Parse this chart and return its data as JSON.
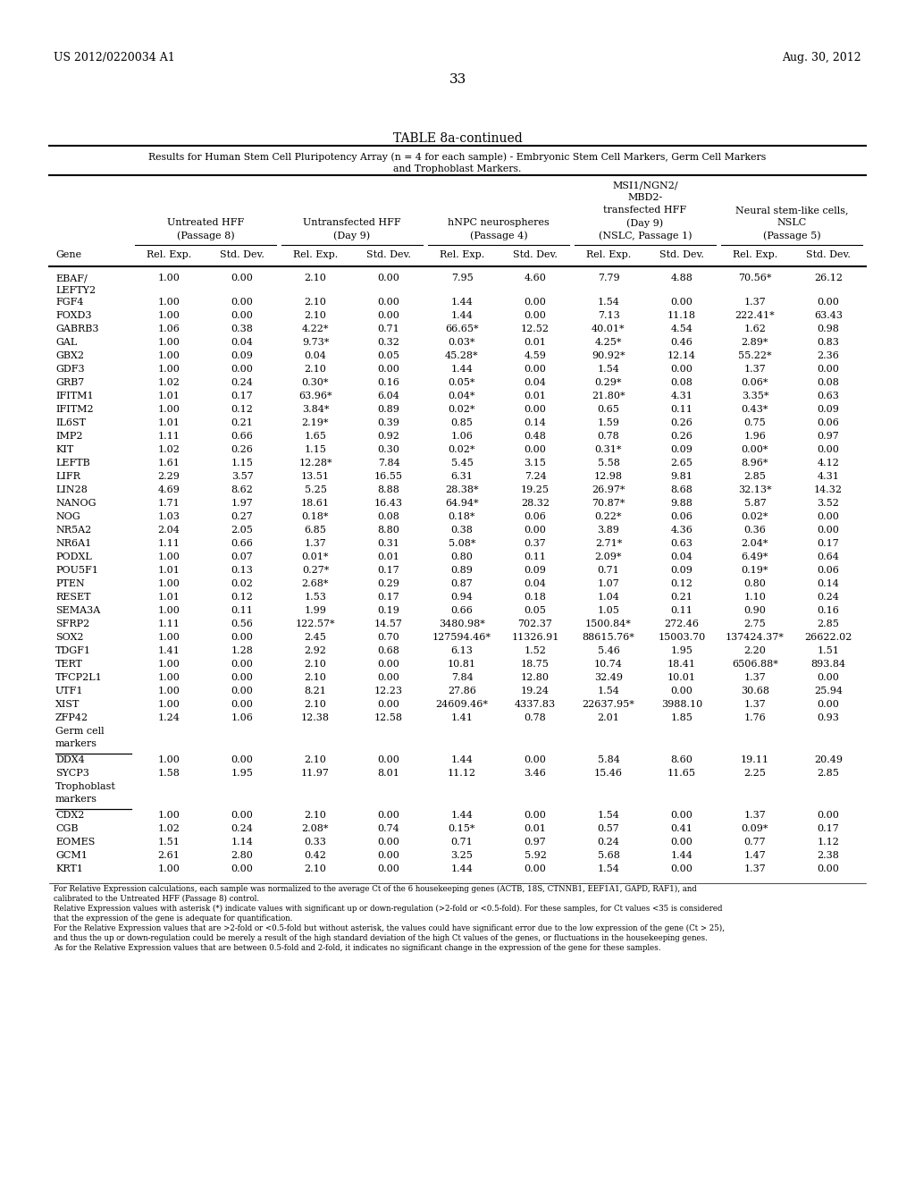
{
  "page_left": "US 2012/0220034 A1",
  "page_right": "Aug. 30, 2012",
  "page_number": "33",
  "table_title": "TABLE 8a-continued",
  "subtitle_line1": "Results for Human Stem Cell Pluripotency Array (n = 4 for each sample) - Embryonic Stem Cell Markers, Germ Cell Markers",
  "subtitle_line2": "and Trophoblast Markers.",
  "group_labels": [
    "Untreated HFF\n(Passage 8)",
    "Untransfected HFF\n(Day 9)",
    "hNPC neurospheres\n(Passage 4)",
    "MSI1/NGN2/\nMBD2-\ntransfected HFF\n(Day 9)\n(NSLC, Passage 1)",
    "Neural stem-like cells,\nNSLC\n(Passage 5)"
  ],
  "rows": [
    {
      "gene": "EBAF/\nLEFTY2",
      "values": [
        "1.00",
        "0.00",
        "2.10",
        "0.00",
        "7.95",
        "4.60",
        "7.79",
        "4.88",
        "70.56*",
        "26.12"
      ],
      "extra_height": true
    },
    {
      "gene": "FGF4",
      "values": [
        "1.00",
        "0.00",
        "2.10",
        "0.00",
        "1.44",
        "0.00",
        "1.54",
        "0.00",
        "1.37",
        "0.00"
      ]
    },
    {
      "gene": "FOXD3",
      "values": [
        "1.00",
        "0.00",
        "2.10",
        "0.00",
        "1.44",
        "0.00",
        "7.13",
        "11.18",
        "222.41*",
        "63.43"
      ]
    },
    {
      "gene": "GABRB3",
      "values": [
        "1.06",
        "0.38",
        "4.22*",
        "0.71",
        "66.65*",
        "12.52",
        "40.01*",
        "4.54",
        "1.62",
        "0.98"
      ]
    },
    {
      "gene": "GAL",
      "values": [
        "1.00",
        "0.04",
        "9.73*",
        "0.32",
        "0.03*",
        "0.01",
        "4.25*",
        "0.46",
        "2.89*",
        "0.83"
      ]
    },
    {
      "gene": "GBX2",
      "values": [
        "1.00",
        "0.09",
        "0.04",
        "0.05",
        "45.28*",
        "4.59",
        "90.92*",
        "12.14",
        "55.22*",
        "2.36"
      ]
    },
    {
      "gene": "GDF3",
      "values": [
        "1.00",
        "0.00",
        "2.10",
        "0.00",
        "1.44",
        "0.00",
        "1.54",
        "0.00",
        "1.37",
        "0.00"
      ]
    },
    {
      "gene": "GRB7",
      "values": [
        "1.02",
        "0.24",
        "0.30*",
        "0.16",
        "0.05*",
        "0.04",
        "0.29*",
        "0.08",
        "0.06*",
        "0.08"
      ]
    },
    {
      "gene": "IFITM1",
      "values": [
        "1.01",
        "0.17",
        "63.96*",
        "6.04",
        "0.04*",
        "0.01",
        "21.80*",
        "4.31",
        "3.35*",
        "0.63"
      ]
    },
    {
      "gene": "IFITM2",
      "values": [
        "1.00",
        "0.12",
        "3.84*",
        "0.89",
        "0.02*",
        "0.00",
        "0.65",
        "0.11",
        "0.43*",
        "0.09"
      ]
    },
    {
      "gene": "IL6ST",
      "values": [
        "1.01",
        "0.21",
        "2.19*",
        "0.39",
        "0.85",
        "0.14",
        "1.59",
        "0.26",
        "0.75",
        "0.06"
      ]
    },
    {
      "gene": "IMP2",
      "values": [
        "1.11",
        "0.66",
        "1.65",
        "0.92",
        "1.06",
        "0.48",
        "0.78",
        "0.26",
        "1.96",
        "0.97"
      ]
    },
    {
      "gene": "KIT",
      "values": [
        "1.02",
        "0.26",
        "1.15",
        "0.30",
        "0.02*",
        "0.00",
        "0.31*",
        "0.09",
        "0.00*",
        "0.00"
      ]
    },
    {
      "gene": "LEFTB",
      "values": [
        "1.61",
        "1.15",
        "12.28*",
        "7.84",
        "5.45",
        "3.15",
        "5.58",
        "2.65",
        "8.96*",
        "4.12"
      ]
    },
    {
      "gene": "LIFR",
      "values": [
        "2.29",
        "3.57",
        "13.51",
        "16.55",
        "6.31",
        "7.24",
        "12.98",
        "9.81",
        "2.85",
        "4.31"
      ]
    },
    {
      "gene": "LIN28",
      "values": [
        "4.69",
        "8.62",
        "5.25",
        "8.88",
        "28.38*",
        "19.25",
        "26.97*",
        "8.68",
        "32.13*",
        "14.32"
      ]
    },
    {
      "gene": "NANOG",
      "values": [
        "1.71",
        "1.97",
        "18.61",
        "16.43",
        "64.94*",
        "28.32",
        "70.87*",
        "9.88",
        "5.87",
        "3.52"
      ]
    },
    {
      "gene": "NOG",
      "values": [
        "1.03",
        "0.27",
        "0.18*",
        "0.08",
        "0.18*",
        "0.06",
        "0.22*",
        "0.06",
        "0.02*",
        "0.00"
      ]
    },
    {
      "gene": "NR5A2",
      "values": [
        "2.04",
        "2.05",
        "6.85",
        "8.80",
        "0.38",
        "0.00",
        "3.89",
        "4.36",
        "0.36",
        "0.00"
      ]
    },
    {
      "gene": "NR6A1",
      "values": [
        "1.11",
        "0.66",
        "1.37",
        "0.31",
        "5.08*",
        "0.37",
        "2.71*",
        "0.63",
        "2.04*",
        "0.17"
      ]
    },
    {
      "gene": "PODXL",
      "values": [
        "1.00",
        "0.07",
        "0.01*",
        "0.01",
        "0.80",
        "0.11",
        "2.09*",
        "0.04",
        "6.49*",
        "0.64"
      ]
    },
    {
      "gene": "POU5F1",
      "values": [
        "1.01",
        "0.13",
        "0.27*",
        "0.17",
        "0.89",
        "0.09",
        "0.71",
        "0.09",
        "0.19*",
        "0.06"
      ]
    },
    {
      "gene": "PTEN",
      "values": [
        "1.00",
        "0.02",
        "2.68*",
        "0.29",
        "0.87",
        "0.04",
        "1.07",
        "0.12",
        "0.80",
        "0.14"
      ]
    },
    {
      "gene": "RESET",
      "values": [
        "1.01",
        "0.12",
        "1.53",
        "0.17",
        "0.94",
        "0.18",
        "1.04",
        "0.21",
        "1.10",
        "0.24"
      ]
    },
    {
      "gene": "SEMA3A",
      "values": [
        "1.00",
        "0.11",
        "1.99",
        "0.19",
        "0.66",
        "0.05",
        "1.05",
        "0.11",
        "0.90",
        "0.16"
      ]
    },
    {
      "gene": "SFRP2",
      "values": [
        "1.11",
        "0.56",
        "122.57*",
        "14.57",
        "3480.98*",
        "702.37",
        "1500.84*",
        "272.46",
        "2.75",
        "2.85"
      ]
    },
    {
      "gene": "SOX2",
      "values": [
        "1.00",
        "0.00",
        "2.45",
        "0.70",
        "127594.46*",
        "11326.91",
        "88615.76*",
        "15003.70",
        "137424.37*",
        "26622.02"
      ]
    },
    {
      "gene": "TDGF1",
      "values": [
        "1.41",
        "1.28",
        "2.92",
        "0.68",
        "6.13",
        "1.52",
        "5.46",
        "1.95",
        "2.20",
        "1.51"
      ]
    },
    {
      "gene": "TERT",
      "values": [
        "1.00",
        "0.00",
        "2.10",
        "0.00",
        "10.81",
        "18.75",
        "10.74",
        "18.41",
        "6506.88*",
        "893.84"
      ]
    },
    {
      "gene": "TFCP2L1",
      "values": [
        "1.00",
        "0.00",
        "2.10",
        "0.00",
        "7.84",
        "12.80",
        "32.49",
        "10.01",
        "1.37",
        "0.00"
      ]
    },
    {
      "gene": "UTF1",
      "values": [
        "1.00",
        "0.00",
        "8.21",
        "12.23",
        "27.86",
        "19.24",
        "1.54",
        "0.00",
        "30.68",
        "25.94"
      ]
    },
    {
      "gene": "XIST",
      "values": [
        "1.00",
        "0.00",
        "2.10",
        "0.00",
        "24609.46*",
        "4337.83",
        "22637.95*",
        "3988.10",
        "1.37",
        "0.00"
      ]
    },
    {
      "gene": "ZFP42",
      "values": [
        "1.24",
        "1.06",
        "12.38",
        "12.58",
        "1.41",
        "0.78",
        "2.01",
        "1.85",
        "1.76",
        "0.93"
      ]
    },
    {
      "gene": "Germ cell\nmarkers",
      "values": [],
      "section_header": true
    },
    {
      "gene": "DDX4",
      "values": [
        "1.00",
        "0.00",
        "2.10",
        "0.00",
        "1.44",
        "0.00",
        "5.84",
        "8.60",
        "19.11",
        "20.49"
      ]
    },
    {
      "gene": "SYCP3",
      "values": [
        "1.58",
        "1.95",
        "11.97",
        "8.01",
        "11.12",
        "3.46",
        "15.46",
        "11.65",
        "2.25",
        "2.85"
      ]
    },
    {
      "gene": "Trophoblast\nmarkers",
      "values": [],
      "section_header": true
    },
    {
      "gene": "CDX2",
      "values": [
        "1.00",
        "0.00",
        "2.10",
        "0.00",
        "1.44",
        "0.00",
        "1.54",
        "0.00",
        "1.37",
        "0.00"
      ]
    },
    {
      "gene": "CGB",
      "values": [
        "1.02",
        "0.24",
        "2.08*",
        "0.74",
        "0.15*",
        "0.01",
        "0.57",
        "0.41",
        "0.09*",
        "0.17"
      ]
    },
    {
      "gene": "EOMES",
      "values": [
        "1.51",
        "1.14",
        "0.33",
        "0.00",
        "0.71",
        "0.97",
        "0.24",
        "0.00",
        "0.77",
        "1.12"
      ]
    },
    {
      "gene": "GCM1",
      "values": [
        "2.61",
        "2.80",
        "0.42",
        "0.00",
        "3.25",
        "5.92",
        "5.68",
        "1.44",
        "1.47",
        "2.38"
      ]
    },
    {
      "gene": "KRT1",
      "values": [
        "1.00",
        "0.00",
        "2.10",
        "0.00",
        "1.44",
        "0.00",
        "1.54",
        "0.00",
        "1.37",
        "0.00"
      ]
    }
  ],
  "footnotes": [
    "For Relative Expression calculations, each sample was normalized to the average Ct of the 6 housekeeping genes (ACTB, 18S, CTNNB1, EEF1A1, GAPD, RAF1), and",
    "calibrated to the Untreated HFF (Passage 8) control.",
    "Relative Expression values with asterisk (*) indicate values with significant up or down-regulation (>2-fold or <0.5-fold). For these samples, for Ct values <35 is considered",
    "that the expression of the gene is adequate for quantification.",
    "For the Relative Expression values that are >2-fold or <0.5-fold but without asterisk, the values could have significant error due to the low expression of the gene (Ct > 25),",
    "and thus the up or down-regulation could be merely a result of the high standard deviation of the high Ct values of the genes, or fluctuations in the housekeeping genes.",
    "As for the Relative Expression values that are between 0.5-fold and 2-fold, it indicates no significant change in the expression of the gene for these samples."
  ]
}
